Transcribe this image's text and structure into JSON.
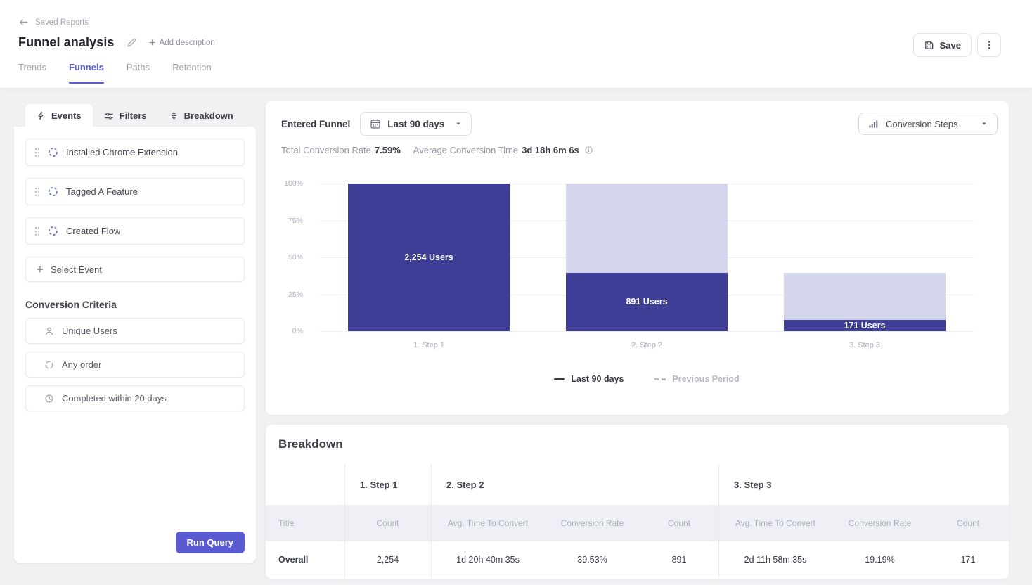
{
  "colors": {
    "accent": "#5a5bd0",
    "page_bg": "#f1f1f4"
  },
  "header": {
    "back_label": "Saved Reports",
    "title": "Funnel analysis",
    "add_description": "Add description",
    "save_label": "Save",
    "tabs": [
      {
        "label": "Trends",
        "active": false
      },
      {
        "label": "Funnels",
        "active": true
      },
      {
        "label": "Paths",
        "active": false
      },
      {
        "label": "Retention",
        "active": false
      }
    ]
  },
  "builder": {
    "tabs": [
      {
        "label": "Events",
        "active": true
      },
      {
        "label": "Filters",
        "active": false
      },
      {
        "label": "Breakdown",
        "active": false
      }
    ],
    "events": [
      {
        "label": "Installed Chrome Extension"
      },
      {
        "label": "Tagged A Feature"
      },
      {
        "label": "Created Flow"
      }
    ],
    "select_event_label": "Select Event",
    "criteria": {
      "heading": "Conversion Criteria",
      "items": [
        {
          "icon": "user-icon",
          "label": "Unique Users"
        },
        {
          "icon": "loop-icon",
          "label": "Any order"
        },
        {
          "icon": "clock-icon",
          "label": "Completed within 20 days"
        }
      ]
    },
    "run_query_label": "Run Query"
  },
  "chart_panel": {
    "funnel_label": "Entered Funnel",
    "date_range": "Last 90 days",
    "view_mode": "Conversion Steps",
    "stats": {
      "total_rate_label": "Total Conversion Rate",
      "total_rate": "7.59%",
      "avg_time_label": "Average Conversion Time",
      "avg_time": "3d 18h 6m 6s"
    },
    "legend": [
      {
        "label": "Last 90 days",
        "style": "solid"
      },
      {
        "label": "Previous Period",
        "style": "dashed"
      }
    ]
  },
  "chart_data": {
    "type": "bar",
    "title": "Entered Funnel conversion steps, Last 90 days",
    "categories": [
      "1. Step 1",
      "2. Step 2",
      "3. Step 3"
    ],
    "series": [
      {
        "name": "Last 90 days",
        "users": [
          2254,
          891,
          171
        ],
        "percent_of_first": [
          100,
          39.53,
          7.59
        ]
      }
    ],
    "prev_step_percent": [
      null,
      100,
      39.53
    ],
    "bar_labels": [
      "2,254 Users",
      "891 Users",
      "171 Users"
    ],
    "y_ticks": [
      "0%",
      "25%",
      "50%",
      "75%",
      "100%"
    ],
    "ylim": [
      0,
      100
    ],
    "grid": true,
    "legend_position": "bottom",
    "colors": {
      "bar": "#3e3e96",
      "bar_faded": "#d3d5ec"
    }
  },
  "breakdown": {
    "title": "Breakdown",
    "groups": [
      "1. Step 1",
      "2. Step 2",
      "3. Step 3"
    ],
    "sub_headers": [
      "Title",
      "Count",
      "Avg. Time To Convert",
      "Conversion Rate",
      "Count",
      "Avg. Time To Convert",
      "Conversion Rate",
      "Count"
    ],
    "rows": [
      [
        "Overall",
        "2,254",
        "1d 20h 40m 35s",
        "39.53%",
        "891",
        "2d 11h 58m 35s",
        "19.19%",
        "171"
      ]
    ]
  }
}
